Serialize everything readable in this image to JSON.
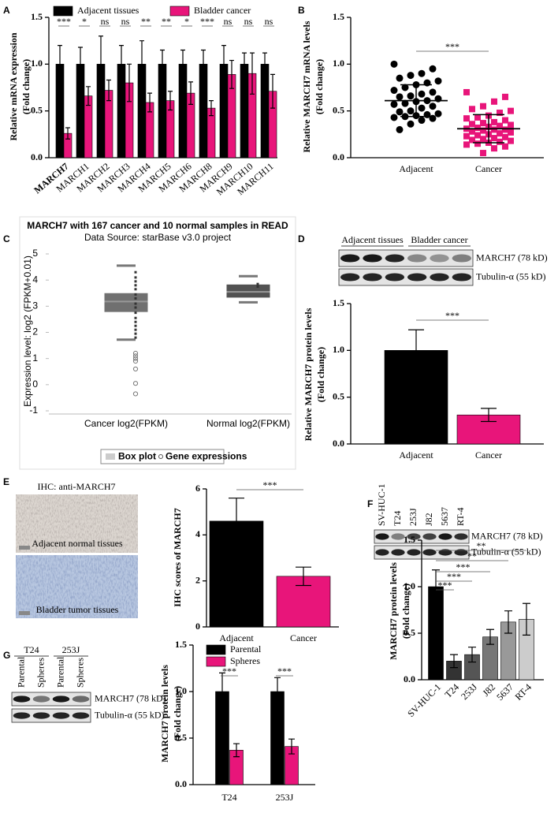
{
  "chart_data": [
    {
      "panel": "A",
      "type": "bar",
      "ylabel": [
        "Relative mRNA expression",
        "(Fold change)"
      ],
      "categories": [
        "MARCH7",
        "MARCH1",
        "MARCH2",
        "MARCH3",
        "MARCH4",
        "MARCH5",
        "MARCH6",
        "MARCH8",
        "MARCH9",
        "MARCH10",
        "MARCH11"
      ],
      "series": [
        {
          "name": "Adjacent tissues",
          "color": "#000000",
          "values": [
            1,
            1,
            1,
            1,
            1,
            1,
            1,
            1,
            1,
            1,
            1
          ],
          "errors": [
            0.2,
            0.18,
            0.3,
            0.2,
            0.25,
            0.15,
            0.15,
            0.15,
            0.2,
            0.12,
            0.12
          ]
        },
        {
          "name": "Bladder cancer",
          "color": "#e8157a",
          "values": [
            0.26,
            0.66,
            0.72,
            0.8,
            0.59,
            0.61,
            0.69,
            0.53,
            0.89,
            0.9,
            0.71
          ],
          "errors": [
            0.06,
            0.1,
            0.11,
            0.2,
            0.1,
            0.1,
            0.12,
            0.08,
            0.15,
            0.22,
            0.18
          ]
        }
      ],
      "significance": [
        "***",
        "*",
        "ns",
        "ns",
        "**",
        "**",
        "*",
        "***",
        "ns",
        "ns",
        "ns"
      ],
      "ylim": [
        0,
        1.5
      ],
      "yticks": [
        {
          "value": 0,
          "label": "0.0"
        },
        0.5,
        {
          "value": 1,
          "label": "1.0"
        },
        1.5
      ]
    },
    {
      "panel": "B",
      "type": "scatter",
      "ylabel": [
        "Relative MARCH7 mRNA levels",
        "(Fold change)"
      ],
      "categories": [
        "Adjacent",
        "Cancer"
      ],
      "series": [
        {
          "color": "#000000",
          "marker": "circle",
          "mean": 0.61,
          "sd": 0.17,
          "values": [
            1.0,
            0.95,
            0.9,
            0.88,
            0.85,
            0.82,
            0.8,
            0.78,
            0.75,
            0.72,
            0.7,
            0.68,
            0.66,
            0.65,
            0.63,
            0.61,
            0.6,
            0.58,
            0.57,
            0.55,
            0.53,
            0.5,
            0.49,
            0.47,
            0.46,
            0.45,
            0.44,
            0.43,
            0.42,
            0.4,
            0.36,
            0.3
          ]
        },
        {
          "color": "#e8157a",
          "marker": "square",
          "mean": 0.31,
          "sd": 0.15,
          "values": [
            0.7,
            0.65,
            0.6,
            0.55,
            0.52,
            0.5,
            0.48,
            0.45,
            0.43,
            0.42,
            0.4,
            0.38,
            0.37,
            0.36,
            0.35,
            0.34,
            0.33,
            0.32,
            0.31,
            0.3,
            0.3,
            0.29,
            0.28,
            0.27,
            0.26,
            0.25,
            0.24,
            0.23,
            0.22,
            0.21,
            0.2,
            0.19,
            0.18,
            0.17,
            0.16,
            0.15,
            0.14,
            0.12,
            0.1,
            0.05
          ]
        }
      ],
      "significance": "***",
      "ylim": [
        0,
        1.5
      ],
      "yticks": [
        {
          "value": 0,
          "label": "0.0"
        },
        0.5,
        {
          "value": 1,
          "label": "1.0"
        },
        1.5
      ]
    },
    {
      "panel": "C",
      "type": "box",
      "title": "MARCH7 with 167 cancer and 10 normal samples in READ",
      "subtitle": "Data Source: starBase v3.0 project",
      "ylabel": "Expression level: log2 (FPKM+0.01)",
      "categories": [
        "Cancer log2(FPKM)",
        "Normal log2(FPKM)"
      ],
      "boxes": [
        {
          "q1": 2.78,
          "median": 3.18,
          "q3": 3.5,
          "whisker_low": 1.72,
          "whisker_high": 4.55,
          "color": "#707070",
          "points": [
            4.3,
            4.1,
            3.95,
            3.8,
            3.65,
            3.45,
            3.3,
            3.1,
            2.95,
            2.75,
            2.55,
            2.4,
            2.25,
            2.1,
            1.95,
            1.8
          ],
          "outliers": [
            1.2,
            1.1,
            1.0,
            0.9,
            0.6,
            0.05,
            -0.35
          ]
        },
        {
          "q1": 3.33,
          "median": 3.55,
          "q3": 3.83,
          "whisker_low": 3.15,
          "whisker_high": 4.15,
          "color": "#525252",
          "points": [
            3.85,
            3.75
          ]
        }
      ],
      "legend": [
        "Box plot",
        "Gene expressions"
      ],
      "ylim": [
        -1,
        5
      ],
      "yticks": [
        -1,
        0,
        1,
        2,
        3,
        4,
        5
      ]
    },
    {
      "panel": "D",
      "type": "bar",
      "blot": {
        "groups": [
          "Adjacent tissues",
          "Bladder cancer"
        ],
        "bands": [
          "MARCH7 (78 kD)",
          "Tubulin-α (55 kD)"
        ]
      },
      "ylabel": [
        "Relative MARCH7 protein levels",
        "(Fold change)"
      ],
      "categories": [
        "Adjacent",
        "Cancer"
      ],
      "values": [
        1,
        0.31
      ],
      "errors": [
        0.22,
        0.07
      ],
      "colors": [
        "#000000",
        "#e8157a"
      ],
      "significance": "***",
      "ylim": [
        0,
        1.5
      ],
      "yticks": [
        {
          "value": 0,
          "label": "0.0"
        },
        0.5,
        {
          "value": 1,
          "label": "1.0"
        },
        1.5
      ]
    },
    {
      "panel": "E",
      "type": "bar",
      "image_title": "IHC: anti-MARCH7",
      "images": [
        "Adjacent normal tissues",
        "Bladder tumor tissues"
      ],
      "ylabel": [
        "IHC scores of MARCH7"
      ],
      "categories": [
        "Adjacent",
        "Cancer"
      ],
      "values": [
        4.6,
        2.2
      ],
      "errors": [
        1.0,
        0.4
      ],
      "colors": [
        "#000000",
        "#e8157a"
      ],
      "significance": "***",
      "ylim": [
        0,
        6
      ],
      "yticks": [
        0,
        2,
        4,
        6
      ]
    },
    {
      "panel": "F",
      "type": "bar",
      "blot": {
        "lanes": [
          "SV-HUC-1",
          "T24",
          "253J",
          "J82",
          "5637",
          "RT-4"
        ],
        "bands": [
          "MARCH7 (78 kD)",
          "Tubulin-α (55 kD)"
        ]
      },
      "ylabel": [
        "MARCH7 protein levels",
        "(Fold change)"
      ],
      "categories": [
        "SV-HUC-1",
        "T24",
        "253J",
        "J82",
        "5637",
        "RT-4"
      ],
      "values": [
        1,
        0.2,
        0.27,
        0.46,
        0.62,
        0.65
      ],
      "errors": [
        0.18,
        0.07,
        0.08,
        0.08,
        0.12,
        0.17
      ],
      "colors": [
        "#000000",
        "#333333",
        "#555555",
        "#777777",
        "#999999",
        "#cccccc"
      ],
      "significance_vs_first": [
        "***",
        "***",
        "***",
        "**",
        "**"
      ],
      "ylim": [
        0,
        1.5
      ],
      "yticks": [
        {
          "value": 0,
          "label": "0.0"
        },
        0.5,
        {
          "value": 1,
          "label": "1.0"
        },
        1.5
      ]
    },
    {
      "panel": "G",
      "type": "bar",
      "blot": {
        "groups": [
          "T24",
          "253J"
        ],
        "lanes": [
          "Parental",
          "Spheres",
          "Parental",
          "Spheres"
        ],
        "bands": [
          "MARCH7 (78 kD)",
          "Tubulin-α (55 kD)"
        ]
      },
      "ylabel": [
        "MARCH7 protein levels",
        "(Fold change)"
      ],
      "categories": [
        "T24",
        "253J"
      ],
      "series": [
        {
          "name": "Parental",
          "color": "#000000",
          "values": [
            1,
            1
          ],
          "errors": [
            0.2,
            0.15
          ]
        },
        {
          "name": "Spheres",
          "color": "#e8157a",
          "values": [
            0.37,
            0.41
          ],
          "errors": [
            0.07,
            0.08
          ]
        }
      ],
      "significance": [
        "***",
        "***"
      ],
      "ylim": [
        0,
        1.5
      ],
      "yticks": [
        {
          "value": 0,
          "label": "0.0"
        },
        0.5,
        {
          "value": 1,
          "label": "1.0"
        },
        1.5
      ]
    }
  ]
}
